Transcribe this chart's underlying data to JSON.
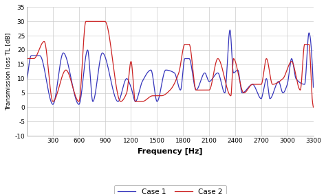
{
  "xlabel": "Frequency [Hz]",
  "ylabel": "Transmission loss TL [dB]",
  "xlim": [
    0,
    3300
  ],
  "ylim": [
    -10,
    35
  ],
  "yticks": [
    -10,
    -5,
    0,
    5,
    10,
    15,
    20,
    25,
    30,
    35
  ],
  "xticks": [
    0,
    300,
    600,
    900,
    1200,
    1500,
    1800,
    2100,
    2400,
    2700,
    3000,
    3300
  ],
  "case1_color": "#3535bb",
  "case2_color": "#cc2222",
  "background_color": "#ffffff",
  "grid_color": "#cccccc",
  "legend_labels": [
    "Case 1",
    "Case 2"
  ],
  "case1_x": [
    0,
    50,
    150,
    300,
    420,
    600,
    700,
    760,
    870,
    1050,
    1150,
    1200,
    1250,
    1330,
    1430,
    1500,
    1600,
    1700,
    1770,
    1820,
    1870,
    1950,
    2050,
    2100,
    2200,
    2280,
    2340,
    2380,
    2430,
    2480,
    2600,
    2700,
    2720,
    2760,
    2800,
    2900,
    2950,
    3000,
    3050,
    3100,
    3200,
    3250,
    3300
  ],
  "case1_y": [
    9,
    18,
    18,
    1,
    19,
    1,
    20,
    2,
    19,
    2,
    10,
    7,
    2,
    9,
    13,
    2,
    13,
    12,
    6,
    17,
    17,
    6,
    12,
    9,
    12,
    5,
    27,
    12,
    13,
    5,
    8,
    3,
    5,
    10,
    3,
    9,
    5,
    8,
    17,
    10,
    8,
    26,
    7
  ],
  "case2_x": [
    0,
    80,
    200,
    300,
    450,
    600,
    680,
    900,
    1080,
    1150,
    1200,
    1250,
    1330,
    1450,
    1550,
    1650,
    1750,
    1820,
    1870,
    1950,
    2050,
    2100,
    2200,
    2350,
    2380,
    2500,
    2600,
    2700,
    2760,
    2830,
    2950,
    3050,
    3150,
    3200,
    3250,
    3290,
    3300
  ],
  "case2_y": [
    17,
    17,
    23,
    2,
    13,
    2,
    30,
    30,
    2,
    5,
    16,
    2,
    2,
    4,
    4,
    6,
    12,
    22,
    22,
    6,
    6,
    6,
    17,
    4,
    17,
    5,
    8,
    8,
    17,
    8,
    10,
    16,
    6,
    22,
    22,
    2,
    0
  ]
}
